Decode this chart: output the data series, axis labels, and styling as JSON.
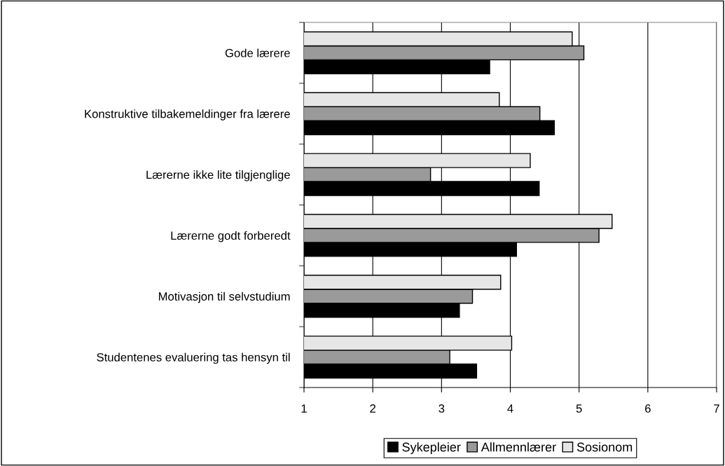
{
  "chart_data": {
    "type": "bar",
    "orientation": "horizontal",
    "categories": [
      "Gode lærere",
      "Konstruktive tilbakemeldinger fra lærere",
      "Lærerne ikke lite tilgjenglige",
      "Lærerne godt forberedt",
      "Motivasjon til selvstudium",
      "Studentenes evaluering tas hensyn til"
    ],
    "series": [
      {
        "name": "Sykepleier",
        "color": "#000000",
        "values": [
          3.7,
          4.64,
          4.42,
          4.09,
          3.26,
          3.51
        ]
      },
      {
        "name": "Allmennlærer",
        "color": "#9a9a9a",
        "values": [
          5.07,
          4.43,
          2.84,
          5.29,
          3.45,
          3.12
        ]
      },
      {
        "name": "Sosionom",
        "color": "#e6e6e6",
        "values": [
          4.9,
          3.84,
          4.29,
          5.48,
          3.86,
          4.02
        ]
      }
    ],
    "xlim": [
      1,
      7
    ],
    "xticks": [
      1,
      2,
      3,
      4,
      5,
      6,
      7
    ],
    "grid": "x",
    "legend": "bottom"
  }
}
